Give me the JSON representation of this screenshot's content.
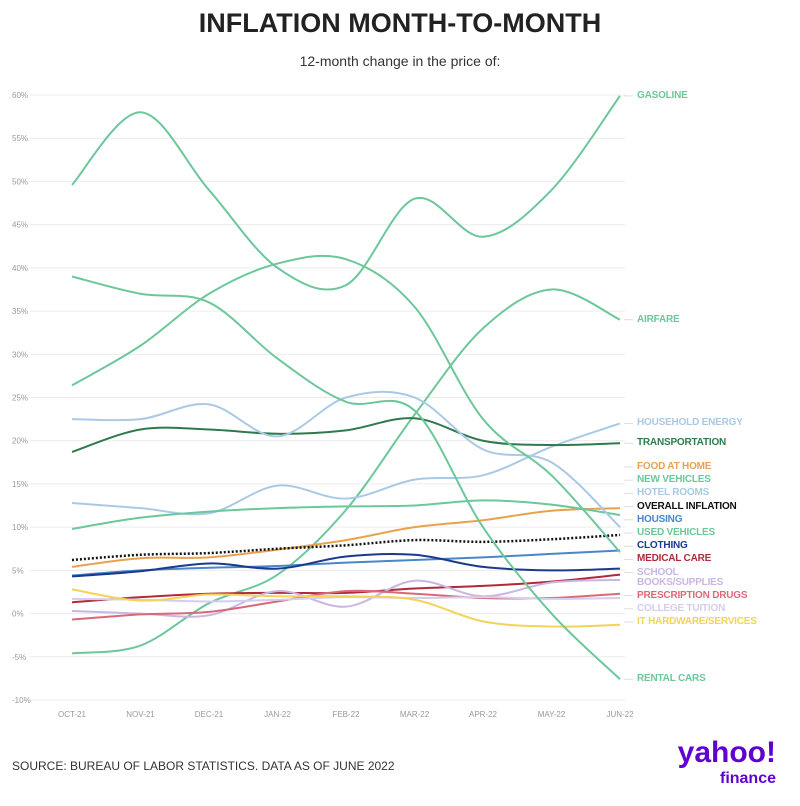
{
  "chart_data": {
    "type": "line",
    "title": "INFLATION MONTH-TO-MONTH",
    "subtitle": "12-month change in the price of:",
    "categories": [
      "OCT-21",
      "NOV-21",
      "DEC-21",
      "JAN-22",
      "FEB-22",
      "MAR-22",
      "APR-22",
      "MAY-22",
      "JUN-22"
    ],
    "ylim": [
      -10,
      60
    ],
    "yticks": [
      {
        "value": -10,
        "label": "-10%"
      },
      {
        "value": -5,
        "label": "-5%"
      },
      {
        "value": 0,
        "label": "0%"
      },
      {
        "value": 5,
        "label": "5%"
      },
      {
        "value": 10,
        "label": "10%"
      },
      {
        "value": 15,
        "label": "15%"
      },
      {
        "value": 20,
        "label": "20%"
      },
      {
        "value": 25,
        "label": "25%"
      },
      {
        "value": 30,
        "label": "30%"
      },
      {
        "value": 35,
        "label": "35%"
      },
      {
        "value": 40,
        "label": "40%"
      },
      {
        "value": 45,
        "label": "45%"
      },
      {
        "value": 50,
        "label": "50%"
      },
      {
        "value": 55,
        "label": "55%"
      },
      {
        "value": 60,
        "label": "60%"
      }
    ],
    "grid": true,
    "series": [
      {
        "name": "GASOLINE",
        "color": "#6cc79a",
        "values": [
          49.6,
          58,
          49,
          40,
          38,
          48,
          43.6,
          49,
          59.9
        ]
      },
      {
        "name": "AIRFARE",
        "color": "#6cc79a",
        "values": [
          -4.6,
          -3.7,
          1.2,
          4.5,
          12,
          23,
          33,
          37.5,
          34
        ]
      },
      {
        "name": "HOUSEHOLD ENERGY",
        "color": "#a9c9e6",
        "values": [
          12.8,
          12.2,
          11.6,
          14.8,
          13.3,
          15.5,
          16,
          19.3,
          22
        ]
      },
      {
        "name": "TRANSPORTATION",
        "color": "#2f7a4c",
        "values": [
          18.7,
          21.3,
          21.3,
          20.8,
          21.2,
          22.6,
          20,
          19.5,
          19.7
        ]
      },
      {
        "name": "FOOD AT HOME",
        "color": "#e9a24c",
        "values": [
          5.4,
          6.4,
          6.5,
          7.4,
          8.5,
          10,
          10.8,
          11.9,
          12.2
        ]
      },
      {
        "name": "NEW VEHICLES",
        "color": "#6cc79a",
        "values": [
          9.8,
          11.1,
          11.8,
          12.2,
          12.4,
          12.5,
          13.1,
          12.6,
          11.4
        ]
      },
      {
        "name": "HOTEL ROOMS",
        "color": "#a9c9e6",
        "values": [
          22.5,
          22.5,
          24.2,
          20.5,
          25,
          25,
          19,
          17.5,
          10
        ]
      },
      {
        "name": "OVERALL INFLATION",
        "color": "#111111",
        "values": [
          6.2,
          6.8,
          7,
          7.5,
          7.9,
          8.5,
          8.3,
          8.6,
          9.1
        ]
      },
      {
        "name": "HOUSING",
        "color": "#4a86c8",
        "values": [
          4.4,
          5,
          5.3,
          5.5,
          5.9,
          6.2,
          6.5,
          6.9,
          7.3
        ]
      },
      {
        "name": "USED VEHICLES",
        "color": "#6cc79a",
        "values": [
          26.4,
          31,
          37,
          40.5,
          41,
          35.5,
          22.5,
          16,
          7.1
        ]
      },
      {
        "name": "CLOTHING",
        "color": "#1b3a8c",
        "values": [
          4.3,
          4.9,
          5.8,
          5.2,
          6.6,
          6.8,
          5.4,
          5,
          5.2
        ]
      },
      {
        "name": "MEDICAL CARE",
        "color": "#b02a3a",
        "values": [
          1.3,
          1.9,
          2.3,
          2.4,
          2.4,
          2.9,
          3.2,
          3.7,
          4.5
        ]
      },
      {
        "name": "SCHOOL\nBOOKS/SUPPLIES",
        "color": "#c9b6e4",
        "values": [
          0.3,
          0,
          -0.2,
          2.6,
          0.8,
          3.8,
          2,
          3.6,
          3.9
        ]
      },
      {
        "name": "PRESCRIPTION DRUGS",
        "color": "#d86a78",
        "values": [
          -0.7,
          -0.1,
          0.2,
          1.4,
          2.6,
          2.3,
          1.8,
          1.8,
          2.3
        ]
      },
      {
        "name": "COLLEGE TUITION",
        "color": "#d5ccee",
        "values": [
          1.7,
          1.6,
          1.4,
          1.6,
          1.9,
          1.8,
          1.9,
          1.7,
          1.8
        ]
      },
      {
        "name": "IT HARDWARE/SERVICES",
        "color": "#f3d35a",
        "values": [
          2.8,
          1.5,
          2.2,
          2,
          2,
          1.6,
          -0.9,
          -1.5,
          -1.3
        ]
      },
      {
        "name": "RENTAL CARS",
        "color": "#6cc79a",
        "values": [
          39,
          37,
          36,
          29.5,
          24.5,
          23.5,
          10,
          0,
          -7.6
        ]
      }
    ]
  },
  "footer": {
    "source": "SOURCE: BUREAU OF LABOR STATISTICS. DATA AS OF JUNE 2022",
    "logo": "yahoo!",
    "logo_sub": "finance"
  }
}
